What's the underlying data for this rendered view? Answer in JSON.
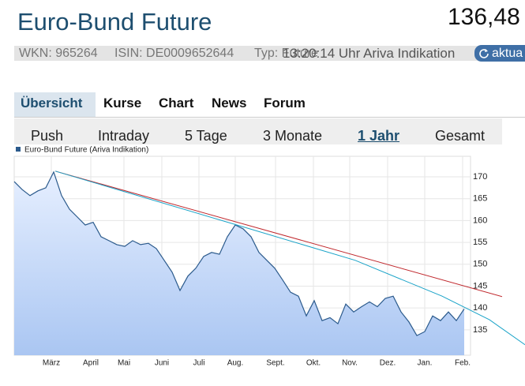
{
  "header": {
    "title": "Euro-Bund Future",
    "price": "136,48",
    "info": [
      "WKN: 965264",
      "ISIN: DE0009652644",
      "Typ: Future"
    ],
    "time": "13:20:14 Uhr Ariva Indikation",
    "button": "aktua"
  },
  "tabs": [
    "Übersicht",
    "Kurse",
    "Chart",
    "News",
    "Forum"
  ],
  "period_tabs": [
    "Push",
    "Intraday",
    "5 Tage",
    "3 Monate",
    "1 Jahr",
    "Gesamt"
  ],
  "chart_data": {
    "type": "line",
    "grid": true,
    "x": [
      0,
      1,
      2,
      3,
      4,
      5,
      6,
      7,
      8,
      9,
      10,
      11,
      12,
      13,
      14,
      15,
      16,
      17,
      18,
      19,
      20,
      21,
      22,
      23,
      24,
      25,
      26,
      27,
      28,
      29,
      30,
      31,
      32,
      33,
      34,
      35,
      36,
      37,
      38,
      39,
      40,
      41,
      42,
      43,
      44,
      45,
      46,
      47,
      48,
      49,
      50,
      51,
      52,
      53,
      54,
      55,
      56,
      57
    ],
    "series": [
      {
        "name": "Euro-Bund Future (Ariva Indikation)",
        "color": "#2b5a8c",
        "values": [
          168.9,
          167.1,
          165.7,
          166.8,
          167.5,
          171.1,
          165.7,
          162.6,
          160.8,
          159,
          159.6,
          156.3,
          155.4,
          154.5,
          154.1,
          155.4,
          154.5,
          154.8,
          153.6,
          150.9,
          148.2,
          144,
          147.3,
          149.1,
          151.8,
          152.7,
          152.3,
          156.3,
          159,
          158.1,
          156.3,
          152.7,
          150.9,
          149.1,
          146.4,
          143.6,
          142.7,
          138.2,
          141.7,
          137.1,
          137.8,
          136.4,
          140.9,
          139.1,
          140.3,
          141.4,
          140.3,
          142.2,
          142.7,
          139.1,
          136.8,
          133.7,
          134.6,
          138.2,
          137.1,
          139.1,
          137.1,
          139.8
        ]
      }
    ],
    "trend_lines": [
      {
        "color": "#c0282d",
        "x": [
          5.2,
          61.8
        ],
        "values": [
          171.3,
          142.6
        ]
      },
      {
        "color": "#1aa3c8",
        "x": [
          5.2,
          28.2,
          43.2,
          54.2,
          60.2,
          64.7
        ],
        "values": [
          171.3,
          159,
          150.9,
          142.7,
          137.3,
          131.6
        ]
      }
    ],
    "xlim": [
      0,
      57.8
    ],
    "xticks": [
      {
        "value": 4.7,
        "label": "März"
      },
      {
        "value": 9.7,
        "label": "April"
      },
      {
        "value": 13.9,
        "label": "Mai"
      },
      {
        "value": 18.7,
        "label": "Juni"
      },
      {
        "value": 23.4,
        "label": "Juli"
      },
      {
        "value": 28,
        "label": "Aug."
      },
      {
        "value": 33.1,
        "label": "Sept."
      },
      {
        "value": 37.9,
        "label": "Okt."
      },
      {
        "value": 42.5,
        "label": "Nov."
      },
      {
        "value": 47.3,
        "label": "Dez."
      },
      {
        "value": 52,
        "label": "Jan."
      },
      {
        "value": 56.8,
        "label": "Feb."
      }
    ],
    "ylim": [
      129.2,
      174.7
    ],
    "yticks": [
      135,
      140,
      145,
      150,
      155,
      160,
      165,
      170
    ]
  }
}
